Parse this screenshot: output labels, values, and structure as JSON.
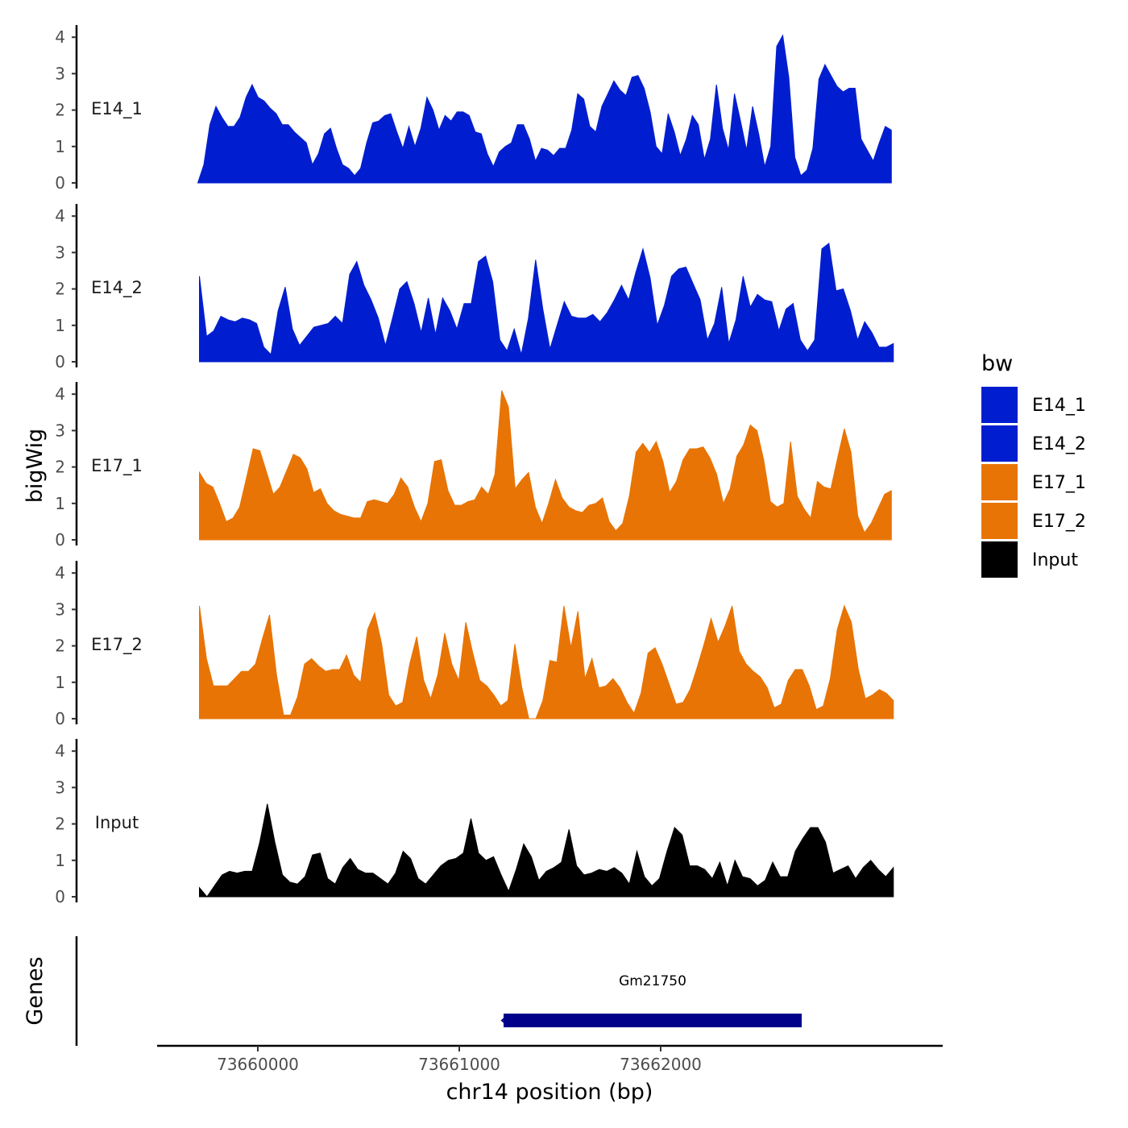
{
  "chart_data": {
    "type": "area",
    "ylabel": "bigWig",
    "xlabel": "chr14 position (bp)",
    "genes_label": "Genes",
    "ylim": [
      0,
      4.2
    ],
    "yticks": [
      0,
      1,
      2,
      3,
      4
    ],
    "xlim": [
      73659500,
      73663400
    ],
    "xticks": [
      73660000,
      73661000,
      73662000
    ],
    "x_tick_labels": [
      "73660000",
      "73661000",
      "73662000"
    ],
    "legend": {
      "title": "bw",
      "position": "right",
      "entries": [
        {
          "label": "E14_1",
          "color": "#001ECF"
        },
        {
          "label": "E14_2",
          "color": "#001ECF"
        },
        {
          "label": "E17_1",
          "color": "#E87405"
        },
        {
          "label": "E17_2",
          "color": "#E87405"
        },
        {
          "label": "Input",
          "color": "#000000"
        }
      ]
    },
    "series": [
      {
        "name": "E14_1",
        "color": "#001ECF",
        "x_start": 73659702,
        "x_end": 73663145,
        "values": [
          0.0,
          0.5,
          1.6,
          2.1,
          1.8,
          1.55,
          1.55,
          1.8,
          2.35,
          2.7,
          2.35,
          2.25,
          2.05,
          1.9,
          1.6,
          1.6,
          1.4,
          1.25,
          1.1,
          0.5,
          0.8,
          1.35,
          1.5,
          0.95,
          0.5,
          0.4,
          0.2,
          0.4,
          1.1,
          1.65,
          1.7,
          1.85,
          1.9,
          1.4,
          0.95,
          1.55,
          1.0,
          1.5,
          2.35,
          2.0,
          1.45,
          1.85,
          1.7,
          1.95,
          1.95,
          1.85,
          1.4,
          1.35,
          0.8,
          0.45,
          0.85,
          1.0,
          1.1,
          1.6,
          1.6,
          1.2,
          0.6,
          0.95,
          0.9,
          0.75,
          0.95,
          0.95,
          1.45,
          2.45,
          2.3,
          1.55,
          1.4,
          2.1,
          2.45,
          2.8,
          2.55,
          2.4,
          2.9,
          2.95,
          2.6,
          1.95,
          1.0,
          0.8,
          1.9,
          1.4,
          0.75,
          1.2,
          1.85,
          1.6,
          0.65,
          1.2,
          2.7,
          1.5,
          0.9,
          2.45,
          1.7,
          0.9,
          2.1,
          1.35,
          0.45,
          1.0,
          3.75,
          4.05,
          2.9,
          0.7,
          0.2,
          0.35,
          0.95,
          2.85,
          3.25,
          2.95,
          2.65,
          2.5,
          2.6,
          2.6,
          1.2,
          0.9,
          0.6,
          1.1,
          1.55,
          1.45
        ]
      },
      {
        "name": "E14_2",
        "color": "#001ECF",
        "x_start": 73659710,
        "x_end": 73663155,
        "values": [
          2.35,
          0.7,
          0.85,
          1.25,
          1.15,
          1.1,
          1.2,
          1.15,
          1.05,
          0.4,
          0.2,
          1.4,
          2.05,
          0.9,
          0.45,
          0.7,
          0.95,
          1.0,
          1.05,
          1.25,
          1.05,
          2.4,
          2.75,
          2.1,
          1.7,
          1.2,
          0.45,
          1.2,
          2.0,
          2.2,
          1.6,
          0.8,
          1.75,
          0.75,
          1.75,
          1.4,
          0.9,
          1.6,
          1.6,
          2.75,
          2.9,
          2.2,
          0.6,
          0.3,
          0.9,
          0.2,
          1.2,
          2.8,
          1.45,
          0.35,
          1.0,
          1.65,
          1.25,
          1.2,
          1.2,
          1.3,
          1.1,
          1.35,
          1.7,
          2.1,
          1.7,
          2.45,
          3.1,
          2.3,
          1.0,
          1.55,
          2.35,
          2.55,
          2.6,
          2.15,
          1.7,
          0.6,
          1.05,
          2.05,
          0.5,
          1.15,
          2.35,
          1.5,
          1.85,
          1.7,
          1.65,
          0.85,
          1.45,
          1.6,
          0.6,
          0.3,
          0.6,
          3.1,
          3.25,
          1.95,
          2.0,
          1.4,
          0.6,
          1.1,
          0.8,
          0.4,
          0.4,
          0.5
        ]
      },
      {
        "name": "E17_1",
        "color": "#E87405",
        "x_start": 73659710,
        "x_end": 73663145,
        "values": [
          1.85,
          1.55,
          1.45,
          1.0,
          0.5,
          0.6,
          0.9,
          1.7,
          2.5,
          2.45,
          1.85,
          1.25,
          1.45,
          1.9,
          2.35,
          2.25,
          1.95,
          1.3,
          1.4,
          1.0,
          0.8,
          0.7,
          0.65,
          0.6,
          0.6,
          1.05,
          1.1,
          1.05,
          1.0,
          1.25,
          1.7,
          1.45,
          0.9,
          0.5,
          1.0,
          2.15,
          2.2,
          1.35,
          0.95,
          0.95,
          1.05,
          1.1,
          1.45,
          1.25,
          1.8,
          4.1,
          3.65,
          1.4,
          1.65,
          1.85,
          0.9,
          0.45,
          1.0,
          1.65,
          1.15,
          0.9,
          0.8,
          0.75,
          0.95,
          1.0,
          1.15,
          0.5,
          0.25,
          0.45,
          1.2,
          2.4,
          2.65,
          2.4,
          2.7,
          2.15,
          1.3,
          1.6,
          2.2,
          2.5,
          2.5,
          2.55,
          2.25,
          1.8,
          1.0,
          1.4,
          2.3,
          2.6,
          3.15,
          3.0,
          2.2,
          1.05,
          0.9,
          1.0,
          2.7,
          1.2,
          0.85,
          0.6,
          1.6,
          1.45,
          1.4,
          2.25,
          3.05,
          2.4,
          0.65,
          0.2,
          0.45,
          0.85,
          1.25,
          1.35
        ]
      },
      {
        "name": "E17_2",
        "color": "#E87405",
        "x_start": 73659710,
        "x_end": 73663155,
        "values": [
          3.1,
          1.65,
          0.9,
          0.9,
          0.9,
          1.1,
          1.3,
          1.3,
          1.5,
          2.2,
          2.85,
          1.2,
          0.1,
          0.1,
          0.6,
          1.5,
          1.65,
          1.45,
          1.3,
          1.35,
          1.35,
          1.75,
          1.2,
          1.0,
          2.45,
          2.9,
          2.05,
          0.65,
          0.35,
          0.45,
          1.5,
          2.25,
          1.05,
          0.55,
          1.2,
          2.35,
          1.5,
          1.05,
          2.65,
          1.8,
          1.05,
          0.9,
          0.65,
          0.35,
          0.5,
          2.05,
          0.85,
          0.0,
          0.0,
          0.5,
          1.6,
          1.55,
          3.1,
          1.95,
          2.95,
          1.1,
          1.65,
          0.85,
          0.9,
          1.1,
          0.85,
          0.45,
          0.15,
          0.7,
          1.8,
          1.95,
          1.5,
          0.95,
          0.4,
          0.45,
          0.8,
          1.4,
          2.05,
          2.75,
          2.1,
          2.55,
          3.1,
          1.85,
          1.5,
          1.3,
          1.15,
          0.85,
          0.3,
          0.4,
          1.05,
          1.35,
          1.35,
          0.9,
          0.25,
          0.35,
          1.1,
          2.45,
          3.1,
          2.65,
          1.35,
          0.55,
          0.65,
          0.8,
          0.7,
          0.5
        ]
      },
      {
        "name": "Input",
        "color": "#000000",
        "x_start": 73659710,
        "x_end": 73663155,
        "values": [
          0.25,
          0.0,
          0.3,
          0.6,
          0.7,
          0.65,
          0.7,
          0.7,
          1.5,
          2.55,
          1.5,
          0.6,
          0.4,
          0.35,
          0.55,
          1.15,
          1.2,
          0.5,
          0.35,
          0.8,
          1.05,
          0.75,
          0.65,
          0.65,
          0.5,
          0.35,
          0.65,
          1.25,
          1.05,
          0.5,
          0.35,
          0.6,
          0.85,
          1.0,
          1.05,
          1.2,
          2.15,
          1.2,
          1.0,
          1.1,
          0.6,
          0.15,
          0.75,
          1.45,
          1.1,
          0.45,
          0.7,
          0.8,
          0.95,
          1.85,
          0.85,
          0.6,
          0.65,
          0.75,
          0.7,
          0.8,
          0.65,
          0.35,
          1.25,
          0.55,
          0.3,
          0.5,
          1.25,
          1.9,
          1.7,
          0.85,
          0.85,
          0.75,
          0.5,
          0.95,
          0.3,
          1.0,
          0.55,
          0.5,
          0.3,
          0.45,
          0.95,
          0.55,
          0.55,
          1.25,
          1.6,
          1.9,
          1.9,
          1.5,
          0.65,
          0.75,
          0.85,
          0.5,
          0.8,
          1.0,
          0.75,
          0.55,
          0.8
        ]
      }
    ],
    "genes": [
      {
        "name": "Gm21750",
        "start": 73661220,
        "end": 73662700,
        "strand": "-",
        "color": "#00008B"
      }
    ]
  }
}
